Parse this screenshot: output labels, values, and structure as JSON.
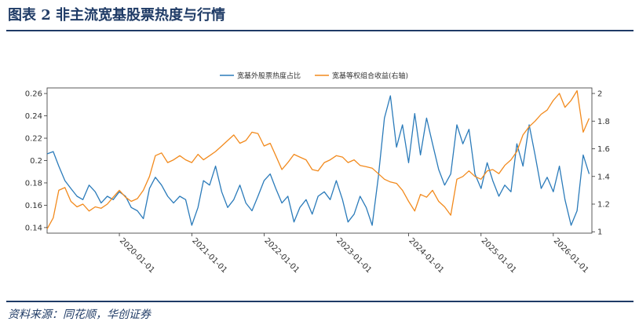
{
  "header": {
    "title": "图表 2 非主流宽基股票热度与行情"
  },
  "footer": {
    "source": "资料来源：同花顺，华创证券"
  },
  "colors": {
    "heat": "#2b7bba",
    "index": "#f28a1d",
    "rule": "#1f3b66"
  },
  "chart_data": {
    "type": "line",
    "title": "",
    "xlabel": "",
    "ylabel": "",
    "legend_position": "top-center",
    "grid": false,
    "x_range": [
      "2019-01-01",
      "2026-07-15"
    ],
    "x_ticks": [
      "2020-01-01",
      "2021-01-01",
      "2022-01-01",
      "2023-01-01",
      "2024-01-01",
      "2025-01-01",
      "2026-01-01"
    ],
    "y_left": {
      "range": [
        0.135,
        0.265
      ],
      "ticks": [
        0.14,
        0.16,
        0.18,
        0.2,
        0.22,
        0.24,
        0.26
      ],
      "tick_labels": [
        "0.14",
        "0.16",
        "0.18",
        "0.2",
        "0.22",
        "0.24",
        "0.26"
      ]
    },
    "y_right": {
      "range": [
        0.99,
        2.04
      ],
      "ticks": [
        1,
        1.2,
        1.4,
        1.6,
        1.8,
        2
      ],
      "tick_labels": [
        "1",
        "1.2",
        "1.4",
        "1.6",
        "1.8",
        "2"
      ]
    },
    "series": [
      {
        "name": "宽基外股票热度占比",
        "axis": "left",
        "points": [
          [
            "2019-01-01",
            0.206
          ],
          [
            "2019-02-01",
            0.208
          ],
          [
            "2019-03-01",
            0.195
          ],
          [
            "2019-04-01",
            0.182
          ],
          [
            "2019-05-01",
            0.175
          ],
          [
            "2019-06-01",
            0.168
          ],
          [
            "2019-07-01",
            0.165
          ],
          [
            "2019-08-01",
            0.178
          ],
          [
            "2019-09-01",
            0.172
          ],
          [
            "2019-10-01",
            0.162
          ],
          [
            "2019-11-01",
            0.168
          ],
          [
            "2019-12-01",
            0.165
          ],
          [
            "2020-01-01",
            0.172
          ],
          [
            "2020-02-01",
            0.168
          ],
          [
            "2020-03-01",
            0.158
          ],
          [
            "2020-04-01",
            0.155
          ],
          [
            "2020-05-01",
            0.148
          ],
          [
            "2020-06-01",
            0.175
          ],
          [
            "2020-07-01",
            0.185
          ],
          [
            "2020-08-01",
            0.178
          ],
          [
            "2020-09-01",
            0.168
          ],
          [
            "2020-10-01",
            0.162
          ],
          [
            "2020-11-01",
            0.168
          ],
          [
            "2020-12-01",
            0.165
          ],
          [
            "2021-01-01",
            0.142
          ],
          [
            "2021-02-01",
            0.158
          ],
          [
            "2021-03-01",
            0.182
          ],
          [
            "2021-04-01",
            0.178
          ],
          [
            "2021-05-01",
            0.195
          ],
          [
            "2021-06-01",
            0.172
          ],
          [
            "2021-07-01",
            0.158
          ],
          [
            "2021-08-01",
            0.165
          ],
          [
            "2021-09-01",
            0.178
          ],
          [
            "2021-10-01",
            0.162
          ],
          [
            "2021-11-01",
            0.155
          ],
          [
            "2021-12-01",
            0.168
          ],
          [
            "2022-01-01",
            0.182
          ],
          [
            "2022-02-01",
            0.188
          ],
          [
            "2022-03-01",
            0.175
          ],
          [
            "2022-04-01",
            0.162
          ],
          [
            "2022-05-01",
            0.168
          ],
          [
            "2022-06-01",
            0.145
          ],
          [
            "2022-07-01",
            0.158
          ],
          [
            "2022-08-01",
            0.165
          ],
          [
            "2022-09-01",
            0.152
          ],
          [
            "2022-10-01",
            0.168
          ],
          [
            "2022-11-01",
            0.172
          ],
          [
            "2022-12-01",
            0.165
          ],
          [
            "2023-01-01",
            0.182
          ],
          [
            "2023-02-01",
            0.165
          ],
          [
            "2023-03-01",
            0.145
          ],
          [
            "2023-04-01",
            0.152
          ],
          [
            "2023-05-01",
            0.168
          ],
          [
            "2023-06-01",
            0.158
          ],
          [
            "2023-07-01",
            0.142
          ],
          [
            "2023-08-01",
            0.185
          ],
          [
            "2023-09-01",
            0.238
          ],
          [
            "2023-10-01",
            0.258
          ],
          [
            "2023-11-01",
            0.212
          ],
          [
            "2023-12-01",
            0.232
          ],
          [
            "2024-01-01",
            0.198
          ],
          [
            "2024-02-01",
            0.242
          ],
          [
            "2024-03-01",
            0.205
          ],
          [
            "2024-04-01",
            0.238
          ],
          [
            "2024-05-01",
            0.215
          ],
          [
            "2024-06-01",
            0.192
          ],
          [
            "2024-07-01",
            0.178
          ],
          [
            "2024-08-01",
            0.188
          ],
          [
            "2024-09-01",
            0.232
          ],
          [
            "2024-10-01",
            0.215
          ],
          [
            "2024-11-01",
            0.228
          ],
          [
            "2024-12-01",
            0.188
          ],
          [
            "2025-01-01",
            0.175
          ],
          [
            "2025-02-01",
            0.198
          ],
          [
            "2025-03-01",
            0.182
          ],
          [
            "2025-04-01",
            0.168
          ],
          [
            "2025-05-01",
            0.178
          ],
          [
            "2025-06-01",
            0.172
          ],
          [
            "2025-07-01",
            0.215
          ],
          [
            "2025-08-01",
            0.195
          ],
          [
            "2025-09-01",
            0.232
          ],
          [
            "2025-10-01",
            0.205
          ],
          [
            "2025-11-01",
            0.175
          ],
          [
            "2025-12-01",
            0.185
          ],
          [
            "2026-01-01",
            0.172
          ],
          [
            "2026-02-01",
            0.195
          ],
          [
            "2026-03-01",
            0.165
          ],
          [
            "2026-04-01",
            0.142
          ],
          [
            "2026-05-01",
            0.155
          ],
          [
            "2026-06-01",
            0.205
          ],
          [
            "2026-07-01",
            0.188
          ]
        ]
      },
      {
        "name": "宽基等权组合收益(右轴)",
        "axis": "right",
        "points": [
          [
            "2019-01-01",
            1.02
          ],
          [
            "2019-02-01",
            1.1
          ],
          [
            "2019-03-01",
            1.3
          ],
          [
            "2019-04-01",
            1.32
          ],
          [
            "2019-05-01",
            1.22
          ],
          [
            "2019-06-01",
            1.18
          ],
          [
            "2019-07-01",
            1.2
          ],
          [
            "2019-08-01",
            1.15
          ],
          [
            "2019-09-01",
            1.18
          ],
          [
            "2019-10-01",
            1.17
          ],
          [
            "2019-11-01",
            1.2
          ],
          [
            "2019-12-01",
            1.25
          ],
          [
            "2020-01-01",
            1.3
          ],
          [
            "2020-02-01",
            1.25
          ],
          [
            "2020-03-01",
            1.22
          ],
          [
            "2020-04-01",
            1.24
          ],
          [
            "2020-05-01",
            1.3
          ],
          [
            "2020-06-01",
            1.4
          ],
          [
            "2020-07-01",
            1.55
          ],
          [
            "2020-08-01",
            1.57
          ],
          [
            "2020-09-01",
            1.5
          ],
          [
            "2020-10-01",
            1.52
          ],
          [
            "2020-11-01",
            1.55
          ],
          [
            "2020-12-01",
            1.52
          ],
          [
            "2021-01-01",
            1.5
          ],
          [
            "2021-02-01",
            1.56
          ],
          [
            "2021-03-01",
            1.52
          ],
          [
            "2021-04-01",
            1.55
          ],
          [
            "2021-05-01",
            1.58
          ],
          [
            "2021-06-01",
            1.62
          ],
          [
            "2021-07-01",
            1.66
          ],
          [
            "2021-08-01",
            1.7
          ],
          [
            "2021-09-01",
            1.64
          ],
          [
            "2021-10-01",
            1.66
          ],
          [
            "2021-11-01",
            1.72
          ],
          [
            "2021-12-01",
            1.71
          ],
          [
            "2022-01-01",
            1.62
          ],
          [
            "2022-02-01",
            1.64
          ],
          [
            "2022-03-01",
            1.55
          ],
          [
            "2022-04-01",
            1.45
          ],
          [
            "2022-05-01",
            1.5
          ],
          [
            "2022-06-01",
            1.56
          ],
          [
            "2022-07-01",
            1.54
          ],
          [
            "2022-08-01",
            1.52
          ],
          [
            "2022-09-01",
            1.45
          ],
          [
            "2022-10-01",
            1.44
          ],
          [
            "2022-11-01",
            1.5
          ],
          [
            "2022-12-01",
            1.52
          ],
          [
            "2023-01-01",
            1.55
          ],
          [
            "2023-02-01",
            1.54
          ],
          [
            "2023-03-01",
            1.5
          ],
          [
            "2023-04-01",
            1.52
          ],
          [
            "2023-05-01",
            1.48
          ],
          [
            "2023-06-01",
            1.47
          ],
          [
            "2023-07-01",
            1.46
          ],
          [
            "2023-08-01",
            1.42
          ],
          [
            "2023-09-01",
            1.38
          ],
          [
            "2023-10-01",
            1.36
          ],
          [
            "2023-11-01",
            1.35
          ],
          [
            "2023-12-01",
            1.3
          ],
          [
            "2024-01-01",
            1.22
          ],
          [
            "2024-02-01",
            1.15
          ],
          [
            "2024-03-01",
            1.27
          ],
          [
            "2024-04-01",
            1.25
          ],
          [
            "2024-05-01",
            1.3
          ],
          [
            "2024-06-01",
            1.22
          ],
          [
            "2024-07-01",
            1.18
          ],
          [
            "2024-08-01",
            1.12
          ],
          [
            "2024-09-01",
            1.38
          ],
          [
            "2024-10-01",
            1.4
          ],
          [
            "2024-11-01",
            1.44
          ],
          [
            "2024-12-01",
            1.4
          ],
          [
            "2025-01-01",
            1.38
          ],
          [
            "2025-02-01",
            1.44
          ],
          [
            "2025-03-01",
            1.45
          ],
          [
            "2025-04-01",
            1.42
          ],
          [
            "2025-05-01",
            1.48
          ],
          [
            "2025-06-01",
            1.52
          ],
          [
            "2025-07-01",
            1.58
          ],
          [
            "2025-08-01",
            1.7
          ],
          [
            "2025-09-01",
            1.76
          ],
          [
            "2025-10-01",
            1.8
          ],
          [
            "2025-11-01",
            1.85
          ],
          [
            "2025-12-01",
            1.88
          ],
          [
            "2026-01-01",
            1.95
          ],
          [
            "2026-02-01",
            2.0
          ],
          [
            "2026-03-01",
            1.9
          ],
          [
            "2026-04-01",
            1.95
          ],
          [
            "2026-05-01",
            2.02
          ],
          [
            "2026-06-01",
            1.72
          ],
          [
            "2026-07-01",
            1.82
          ]
        ]
      }
    ]
  }
}
